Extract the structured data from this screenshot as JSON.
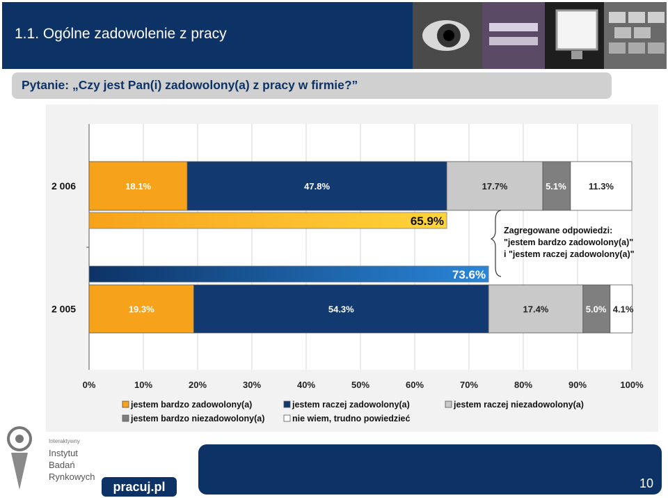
{
  "header": {
    "title": "1.1. Ogólne zadowolenie z pracy"
  },
  "question": {
    "text": "Pytanie: „Czy jest Pan(i) zadowolony(a) z pracy w firmie?”"
  },
  "logos": {
    "institute_line1": "Interaktywny",
    "institute_line2": "Instytut",
    "institute_line3": "Badań",
    "institute_line4": "Rynkowych",
    "pracuj": "pracuj.pl"
  },
  "page_number": "10",
  "colors": {
    "header_bg": "#0d3366",
    "bardzo_zadowolony": "#f7a21b",
    "raczej_zadowolony": "#133a70",
    "raczej_niezadowolony": "#c9c9c9",
    "bardzo_niezadowolony": "#7f7f7f",
    "nie_wiem": "#ffffff"
  },
  "chart_data": {
    "type": "bar",
    "orientation": "horizontal-stacked",
    "categories": [
      "2 006",
      "2 005"
    ],
    "series": [
      {
        "name": "jestem bardzo zadowolony(a)",
        "values": [
          18.1,
          19.3
        ],
        "labels": [
          "18.1%",
          "19.3%"
        ]
      },
      {
        "name": "jestem raczej zadowolony(a)",
        "values": [
          47.8,
          54.3
        ],
        "labels": [
          "47.8%",
          "54.3%"
        ]
      },
      {
        "name": "jestem raczej niezadowolony(a)",
        "values": [
          17.7,
          17.4
        ],
        "labels": [
          "17.7%",
          "17.4%"
        ]
      },
      {
        "name": "jestem bardzo niezadowolony(a)",
        "values": [
          5.1,
          5.0
        ],
        "labels": [
          "5.1%",
          "5.0%"
        ]
      },
      {
        "name": "nie wiem, trudno powiedzieć",
        "values": [
          11.3,
          4.1
        ],
        "labels": [
          "11.3%",
          "4.1%"
        ]
      }
    ],
    "aggregates": [
      {
        "category": "2 006",
        "value": 65.9,
        "label": "65.9%"
      },
      {
        "category": "2 005",
        "value": 73.6,
        "label": "73.6%"
      }
    ],
    "annotation": [
      "Zagregowane odpowiedzi:",
      "\"jestem bardzo zadowolony(a)\"",
      "i \"jestem raczej zadowolony(a)\""
    ],
    "xlim": [
      0,
      100
    ],
    "xticks": [
      "0%",
      "10%",
      "20%",
      "30%",
      "40%",
      "50%",
      "60%",
      "70%",
      "80%",
      "90%",
      "100%"
    ],
    "grid": true,
    "legend_position": "bottom"
  }
}
